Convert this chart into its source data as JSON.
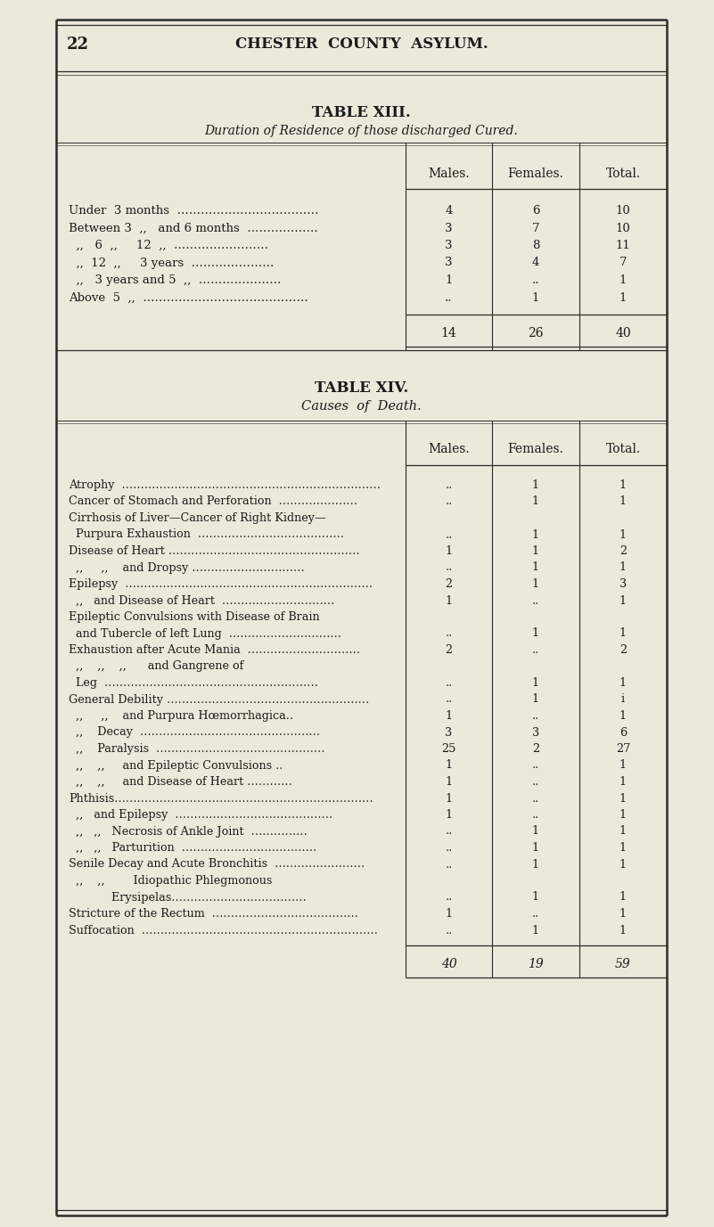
{
  "page_number": "22",
  "page_header": "CHESTER  COUNTY  ASYLUM.",
  "bg_color": "#ede8dc",
  "text_color": "#1a1a1a",
  "table13": {
    "title": "TABLE XIII.",
    "subtitle": "Duration of Residence of those discharged Cured.",
    "col_headers": [
      "Males.",
      "Females.",
      "Total."
    ],
    "rows": [
      {
        "label": "Under  3 months  ………………………………",
        "males": "4",
        "females": "6",
        "total": "10"
      },
      {
        "label": "Between 3  ,,   and 6 months  ………………",
        "males": "3",
        "females": "7",
        "total": "10"
      },
      {
        "label": "  ,,   6  ,,     12  ,,  ……………………",
        "males": "3",
        "females": "8",
        "total": "11"
      },
      {
        "label": "  ,,  12  ,,     3 years  …………………",
        "males": "3",
        "females": "4",
        "total": "7"
      },
      {
        "label": "  ,,   3 years and 5  ,,  …………………",
        "males": "1",
        "females": "..",
        "total": "1"
      },
      {
        "label": "Above  5  ,,  ……………………………………",
        "males": "..",
        "females": "1",
        "total": "1"
      }
    ],
    "totals": {
      "males": "14",
      "females": "26",
      "total": "40"
    }
  },
  "table14": {
    "title": "TABLE XIV.",
    "subtitle": "Causes  of  Death.",
    "col_headers": [
      "Males.",
      "Females.",
      "Total."
    ],
    "rows": [
      {
        "label": "Atrophy  ……………………………………………………………",
        "males": "..",
        "females": "1",
        "total": "1"
      },
      {
        "label": "Cancer of Stomach and Perforation  …………………",
        "males": "..",
        "females": "1",
        "total": "1"
      },
      {
        "label": "Cirrhosis of Liver—Cancer of Right Kidney—",
        "males": "",
        "females": "",
        "total": ""
      },
      {
        "label": "  Purpura Exhaustion  …………………………………",
        "males": "..",
        "females": "1",
        "total": "1"
      },
      {
        "label": "Disease of Heart ……………………………………………",
        "males": "1",
        "females": "1",
        "total": "2"
      },
      {
        "label": "  ,,     ,,    and Dropsy …………………………",
        "males": "..",
        "females": "1",
        "total": "1"
      },
      {
        "label": "Epilepsy  …………………………………………………………",
        "males": "2",
        "females": "1",
        "total": "3"
      },
      {
        "label": "  ,,   and Disease of Heart  …………………………",
        "males": "1",
        "females": "..",
        "total": "1"
      },
      {
        "label": "Epileptic Convulsions with Disease of Brain",
        "males": "",
        "females": "",
        "total": ""
      },
      {
        "label": "  and Tubercle of left Lung  …………………………",
        "males": "..",
        "females": "1",
        "total": "1"
      },
      {
        "label": "Exhaustion after Acute Mania  …………………………",
        "males": "2",
        "females": "..",
        "total": "2"
      },
      {
        "label": "  ,,    ,,    ,,      and Gangrene of",
        "males": "",
        "females": "",
        "total": ""
      },
      {
        "label": "  Leg  …………………………………………………",
        "males": "..",
        "females": "1",
        "total": "1"
      },
      {
        "label": "General Debility ………………………………………………",
        "males": "..",
        "females": "1",
        "total": "i"
      },
      {
        "label": "  ,,     ,,    and Purpura Hœmorrhagica..",
        "males": "1",
        "females": "..",
        "total": "1"
      },
      {
        "label": "  ,,    Decay  …………………………………………",
        "males": "3",
        "females": "3",
        "total": "6"
      },
      {
        "label": "  ,,    Paralysis  ………………………………………",
        "males": "25",
        "females": "2",
        "total": "27"
      },
      {
        "label": "  ,,    ,,     and Epileptic Convulsions ..",
        "males": "1",
        "females": "..",
        "total": "1"
      },
      {
        "label": "  ,,    ,,     and Disease of Heart …………",
        "males": "1",
        "females": "..",
        "total": "1"
      },
      {
        "label": "Phthisis……………………………………………………………",
        "males": "1",
        "females": "..",
        "total": "1"
      },
      {
        "label": "  ,,   and Epilepsy  ……………………………………",
        "males": "1",
        "females": "..",
        "total": "1"
      },
      {
        "label": "  ,,   ,,   Necrosis of Ankle Joint  ……………",
        "males": "..",
        "females": "1",
        "total": "1"
      },
      {
        "label": "  ,,   ,,   Parturition  ………………………………",
        "males": "..",
        "females": "1",
        "total": "1"
      },
      {
        "label": "Senile Decay and Acute Bronchitis  ……………………",
        "males": "..",
        "females": "1",
        "total": "1"
      },
      {
        "label": "  ,,    ,,        Idiopathic Phlegmonous",
        "males": "",
        "females": "",
        "total": ""
      },
      {
        "label": "            Erysipelas………………………………",
        "males": "..",
        "females": "1",
        "total": "1"
      },
      {
        "label": "Stricture of the Rectum  …………………………………",
        "males": "1",
        "females": "..",
        "total": "1"
      },
      {
        "label": "Suffocation  ………………………………………………………",
        "males": "..",
        "females": "1",
        "total": "1"
      }
    ],
    "totals": {
      "males": "40",
      "females": "19",
      "total": "59"
    }
  }
}
